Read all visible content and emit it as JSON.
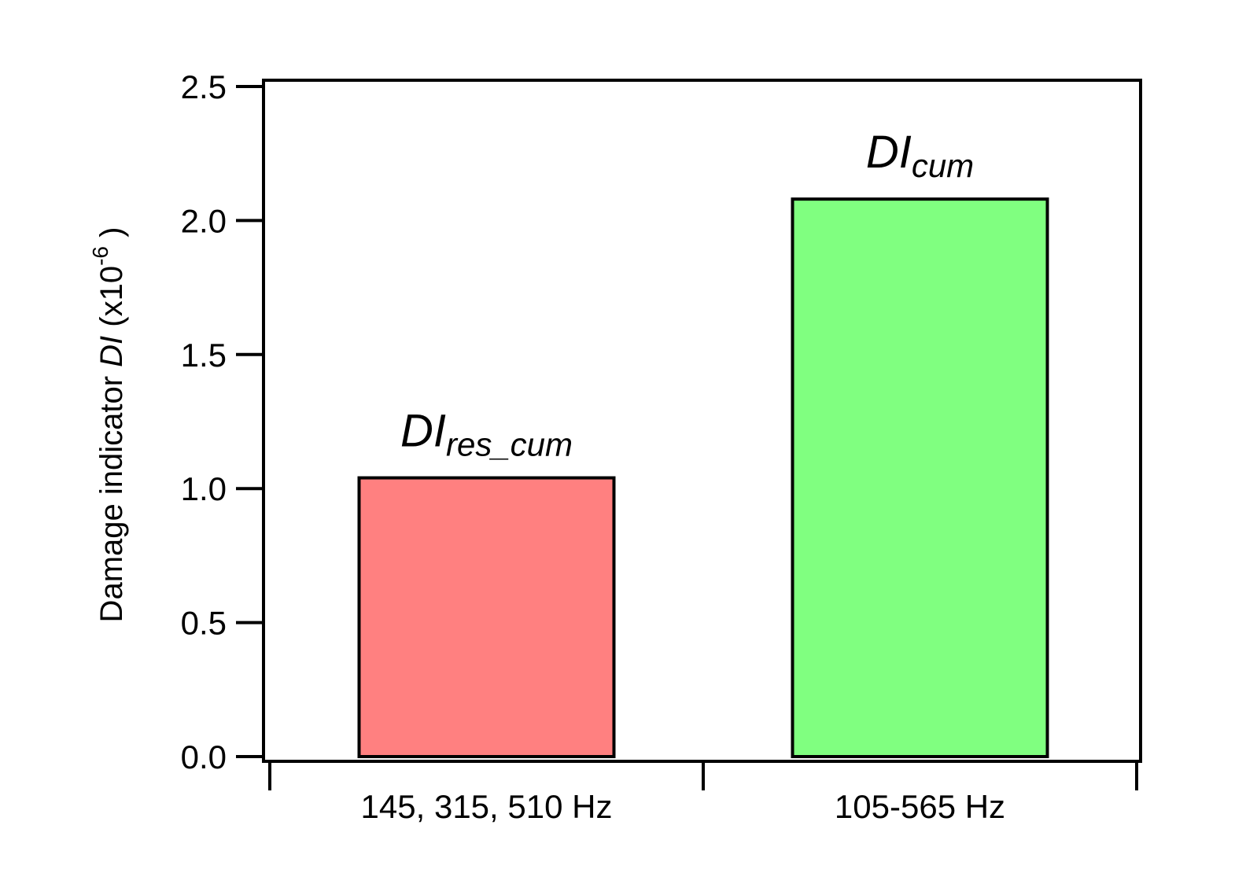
{
  "chart_data": {
    "type": "bar",
    "y_label": {
      "text": "Damage indicator ",
      "italic": "DI",
      "unit": " (x10",
      "exponent": "-6",
      "close": " )"
    },
    "categories": [
      "145, 315, 510 Hz",
      "105-565 Hz"
    ],
    "values": [
      1.04,
      2.08
    ],
    "colors": [
      "#ff8080",
      "#80ff80"
    ],
    "bar_labels": [
      {
        "main": "DI",
        "subscript": "res_cum"
      },
      {
        "main": "DI",
        "subscript": "cum"
      }
    ],
    "ylim": [
      0,
      2.5
    ],
    "yticks": [
      {
        "value": 0,
        "label": "0.0"
      },
      {
        "value": 0.5,
        "label": "0.5"
      },
      {
        "value": 1,
        "label": "1.0"
      },
      {
        "value": 1.5,
        "label": "1.5"
      },
      {
        "value": 2,
        "label": "2.0"
      },
      {
        "value": 2.5,
        "label": "2.5"
      }
    ],
    "grid": false
  }
}
